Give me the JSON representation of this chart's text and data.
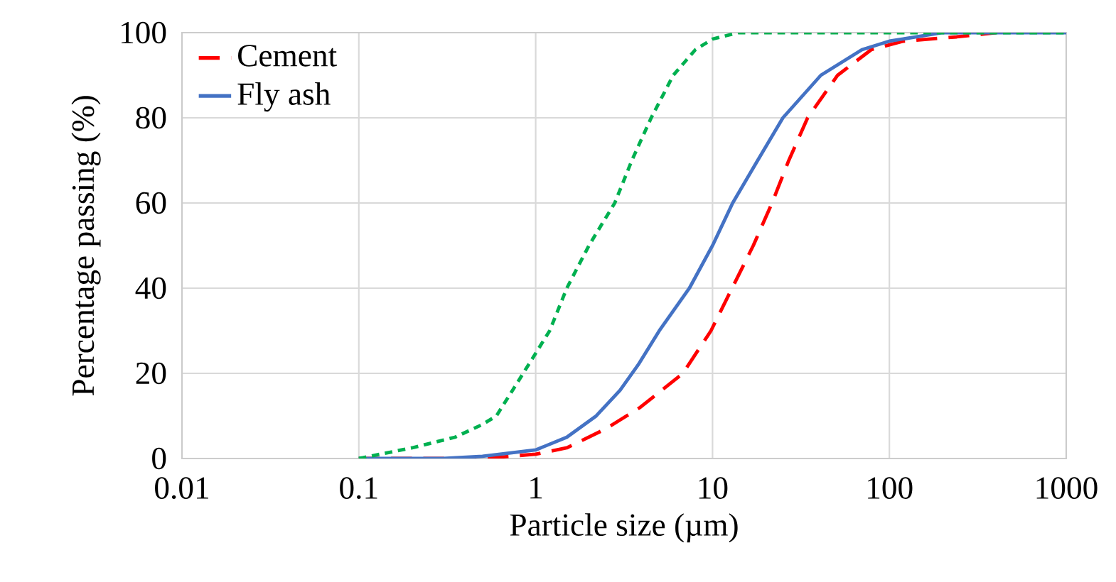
{
  "chart_data": {
    "type": "line",
    "xlabel": "Particle size (µm)",
    "ylabel": "Percentage passing (%)",
    "log": "x",
    "grid": true,
    "legend": "top left",
    "marker": "none",
    "xlim": [
      0.01,
      1000
    ],
    "xticks": [
      0.01,
      0.1,
      1,
      10,
      100,
      1000
    ],
    "ylim": [
      0,
      100
    ],
    "yticks": [
      0,
      20,
      40,
      60,
      80,
      100
    ],
    "series": [
      {
        "name": "Cement",
        "color": "#ff0000",
        "line_style": "dashed",
        "x": [
          0.1,
          0.5,
          1,
          1.5,
          2.5,
          3.9,
          6.8,
          9.8,
          12.9,
          17,
          21.7,
          27,
          34.5,
          51,
          79,
          120,
          240,
          400
        ],
        "values": [
          0,
          0,
          1,
          2.5,
          7,
          12,
          20,
          30,
          40,
          50,
          60,
          70,
          80,
          90,
          96,
          98,
          99,
          100
        ]
      },
      {
        "name": "Fly ash",
        "color": "#4472c4",
        "line_style": "solid",
        "x": [
          0.1,
          0.3,
          0.5,
          1,
          1.5,
          2.2,
          3,
          3.8,
          5,
          7.4,
          10,
          13,
          18,
          25,
          41,
          70,
          100,
          200,
          1000
        ],
        "values": [
          0,
          0,
          0.5,
          2,
          5,
          10,
          16,
          22,
          30,
          40,
          50,
          60,
          70,
          80,
          90,
          96,
          98,
          100,
          100
        ]
      },
      {
        "color": "#00b050",
        "line_style": "dotted",
        "x": [
          0.1,
          0.2,
          0.35,
          0.5,
          0.6,
          0.85,
          1.2,
          1.5,
          2,
          2.8,
          3.5,
          4.5,
          6,
          8,
          10,
          14,
          1000
        ],
        "values": [
          0,
          2.5,
          5,
          8,
          10,
          20,
          30,
          40,
          50,
          60,
          70,
          80,
          90,
          96,
          98.5,
          100,
          100
        ]
      }
    ]
  }
}
